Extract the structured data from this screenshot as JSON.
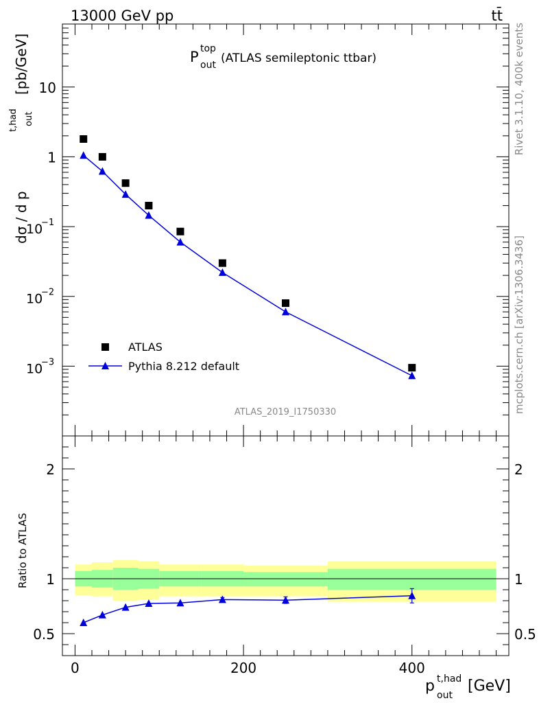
{
  "header": {
    "energy_label": "13000 GeV pp",
    "process_label": "tt̄"
  },
  "side_labels": {
    "rivet": "Rivet 3.1.10,  400k events",
    "mcplots": "mcplots.cern.ch [arXiv:1306.3436]"
  },
  "colors": {
    "data": "#000000",
    "mc": "#0000dd",
    "band_inner": "#99ff99",
    "band_outer": "#ffff99",
    "watermark": "#888888"
  },
  "chart_data": [
    {
      "type": "scatter",
      "panel": "main",
      "title_main": "P",
      "title_sup": "top",
      "title_sub": "out",
      "title_suffix": "(ATLAS semileptonic ttbar)",
      "watermark": "ATLAS_2019_I1750330",
      "ylabel_main": "dσ / d p",
      "ylabel_sup": "t,had",
      "ylabel_sub": "out",
      "ylabel_unit": "[pb/GeV]",
      "yscale": "log",
      "ylim": [
        0.0001,
        80
      ],
      "xlim": [
        -15,
        515
      ],
      "ytick_labels": [
        {
          "base": "10",
          "exp": "−3",
          "value": 0.001
        },
        {
          "base": "10",
          "exp": "−2",
          "value": 0.01
        },
        {
          "base": "10",
          "exp": "−1",
          "value": 0.1
        },
        {
          "base": "1",
          "exp": "",
          "value": 1
        },
        {
          "base": "10",
          "exp": "",
          "value": 10
        }
      ],
      "legend": {
        "position": "lower-left",
        "data_label": "ATLAS",
        "mc_label": "Pythia 8.212 default"
      },
      "series": [
        {
          "name": "ATLAS",
          "marker": "square",
          "x": [
            10,
            32.5,
            60,
            87.5,
            125,
            175,
            250,
            400
          ],
          "y": [
            1.8,
            1.0,
            0.42,
            0.2,
            0.085,
            0.03,
            0.008,
            0.00095
          ]
        },
        {
          "name": "Pythia 8.212 default",
          "marker": "triangle",
          "x": [
            10,
            32.5,
            60,
            87.5,
            125,
            175,
            250,
            400
          ],
          "y": [
            1.05,
            0.62,
            0.29,
            0.145,
            0.06,
            0.022,
            0.006,
            0.00073
          ]
        }
      ]
    },
    {
      "type": "line",
      "panel": "ratio",
      "ylabel": "Ratio to ATLAS",
      "xlabel_main": "p",
      "xlabel_sup": "t,had",
      "xlabel_sub": "out",
      "xlabel_unit": "[GeV]",
      "ylim": [
        0.3,
        2.3
      ],
      "xlim": [
        -15,
        515
      ],
      "xtick_labels": [
        "0",
        "200",
        "400"
      ],
      "xtick_values": [
        0,
        200,
        400
      ],
      "ytick_labels": [
        "0.5",
        "1",
        "2"
      ],
      "ytick_values": [
        0.5,
        1,
        2
      ],
      "reference": 1,
      "bands": {
        "bin_edges": [
          0,
          20,
          45,
          75,
          100,
          150,
          200,
          300,
          500
        ],
        "inner_low": [
          0.93,
          0.92,
          0.9,
          0.91,
          0.93,
          0.93,
          0.93,
          0.9
        ],
        "inner_high": [
          1.07,
          1.08,
          1.1,
          1.09,
          1.07,
          1.07,
          1.06,
          1.09
        ],
        "outer_low": [
          0.85,
          0.84,
          0.8,
          0.81,
          0.84,
          0.84,
          0.84,
          0.79
        ],
        "outer_high": [
          1.13,
          1.15,
          1.17,
          1.16,
          1.13,
          1.13,
          1.12,
          1.16
        ]
      },
      "series": [
        {
          "name": "Pythia 8.212 default",
          "x": [
            10,
            32.5,
            60,
            87.5,
            125,
            175,
            250,
            400
          ],
          "y": [
            0.6,
            0.67,
            0.74,
            0.775,
            0.78,
            0.81,
            0.805,
            0.845
          ],
          "yerr": [
            0.007,
            0.007,
            0.008,
            0.01,
            0.012,
            0.02,
            0.03,
            0.065
          ]
        }
      ]
    }
  ]
}
